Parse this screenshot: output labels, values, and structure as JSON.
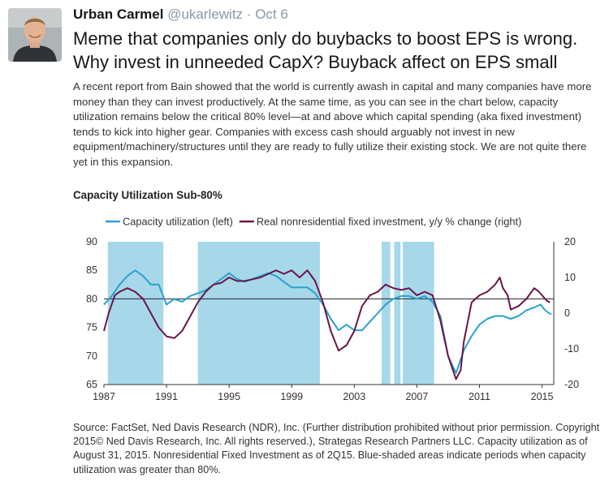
{
  "tweet": {
    "name": "Urban Carmel",
    "handle": "@ukarlewitz",
    "separator": "·",
    "time": "Oct 6",
    "text": "Meme that companies only do buybacks to boost EPS is wrong. Why invest in unneeded CapX? Buyback affect on EPS small"
  },
  "card": {
    "report_text": "A recent report from Bain showed that the world is currently awash in capital and many companies have more money than they can invest productively. At the same time, as you can see in the chart below, capacity utilization remains below the critical 80% level—at and above which capital spending (aka fixed investment) tends to kick into higher gear. Companies with excess cash should arguably not invest in new equipment/machinery/structures until they are ready to fully utilize their existing stock. We are not quite there yet in this expansion.",
    "source_text": "Source: FactSet, Ned Davis Research (NDR), Inc. (Further distribution prohibited without prior permission. Copyright 2015© Ned Davis Research, Inc. All rights reserved.), Strategas Research Partners LLC. Capacity utilization as of August 31, 2015. Nonresidential Fixed Investment as of 2Q15. Blue-shaded areas indicate periods when capacity utilization was greater than 80%."
  },
  "chart_data": {
    "type": "line",
    "title": "Capacity Utilization Sub-80%",
    "colors": {
      "capacity": "#2aa0cf",
      "investment": "#6b1546",
      "shade": "#a6d8ea",
      "ref_line": "#222222"
    },
    "x_ticks": [
      "1987",
      "1991",
      "1995",
      "1999",
      "2003",
      "2007",
      "2011",
      "2015"
    ],
    "x_range": [
      1987,
      2015.75
    ],
    "y_left": {
      "range": [
        65,
        90
      ],
      "ticks": [
        65,
        70,
        75,
        80,
        85,
        90
      ]
    },
    "y_right": {
      "range": [
        -20,
        20
      ],
      "ticks": [
        "-20",
        "-10",
        "0",
        "10",
        "20"
      ]
    },
    "reference_value_left": 80,
    "shaded_periods": [
      [
        1987.25,
        1990.8
      ],
      [
        1993.0,
        2000.8
      ],
      [
        2004.75,
        2005.3
      ],
      [
        2005.55,
        2005.95
      ],
      [
        2006.1,
        2008.1
      ]
    ],
    "series": [
      {
        "name": "Capacity utilization (left)",
        "axis": "left",
        "points": [
          [
            1987.0,
            79.0
          ],
          [
            1987.5,
            80.5
          ],
          [
            1988.0,
            82.5
          ],
          [
            1988.5,
            84.0
          ],
          [
            1989.0,
            85.0
          ],
          [
            1989.5,
            84.0
          ],
          [
            1990.0,
            82.5
          ],
          [
            1990.5,
            82.5
          ],
          [
            1991.0,
            79.0
          ],
          [
            1991.5,
            80.0
          ],
          [
            1992.0,
            79.5
          ],
          [
            1992.5,
            80.5
          ],
          [
            1993.0,
            81.0
          ],
          [
            1993.5,
            81.5
          ],
          [
            1994.0,
            82.5
          ],
          [
            1994.5,
            83.5
          ],
          [
            1995.0,
            84.5
          ],
          [
            1995.5,
            83.5
          ],
          [
            1996.0,
            83.0
          ],
          [
            1996.5,
            83.5
          ],
          [
            1997.0,
            84.0
          ],
          [
            1997.5,
            84.5
          ],
          [
            1998.0,
            84.0
          ],
          [
            1998.5,
            83.0
          ],
          [
            1999.0,
            82.0
          ],
          [
            1999.5,
            82.0
          ],
          [
            2000.0,
            82.0
          ],
          [
            2000.5,
            81.0
          ],
          [
            2001.0,
            79.0
          ],
          [
            2001.5,
            76.5
          ],
          [
            2002.0,
            74.5
          ],
          [
            2002.5,
            75.5
          ],
          [
            2003.0,
            74.5
          ],
          [
            2003.5,
            74.5
          ],
          [
            2004.0,
            76.0
          ],
          [
            2004.5,
            77.5
          ],
          [
            2005.0,
            79.0
          ],
          [
            2005.5,
            80.0
          ],
          [
            2006.0,
            80.5
          ],
          [
            2006.5,
            80.5
          ],
          [
            2007.0,
            80.0
          ],
          [
            2007.5,
            80.5
          ],
          [
            2008.0,
            79.5
          ],
          [
            2008.5,
            77.0
          ],
          [
            2009.0,
            70.0
          ],
          [
            2009.5,
            67.0
          ],
          [
            2010.0,
            71.0
          ],
          [
            2010.5,
            73.5
          ],
          [
            2011.0,
            75.5
          ],
          [
            2011.5,
            76.5
          ],
          [
            2012.0,
            77.0
          ],
          [
            2012.5,
            77.0
          ],
          [
            2013.0,
            76.5
          ],
          [
            2013.5,
            77.0
          ],
          [
            2014.0,
            78.0
          ],
          [
            2014.5,
            78.5
          ],
          [
            2014.9,
            79.0
          ],
          [
            2015.2,
            78.0
          ],
          [
            2015.45,
            77.5
          ],
          [
            2015.6,
            77.3
          ]
        ]
      },
      {
        "name": "Real nonresidential fixed investment, y/y % change (right)",
        "axis": "right",
        "points": [
          [
            1987.0,
            -5.0
          ],
          [
            1987.3,
            0.0
          ],
          [
            1987.7,
            5.0
          ],
          [
            1988.0,
            6.0
          ],
          [
            1988.5,
            7.0
          ],
          [
            1989.0,
            6.0
          ],
          [
            1989.5,
            4.0
          ],
          [
            1990.0,
            0.0
          ],
          [
            1990.5,
            -4.0
          ],
          [
            1991.0,
            -6.5
          ],
          [
            1991.5,
            -7.0
          ],
          [
            1992.0,
            -5.0
          ],
          [
            1992.5,
            -1.0
          ],
          [
            1993.0,
            3.0
          ],
          [
            1993.5,
            6.0
          ],
          [
            1994.0,
            8.0
          ],
          [
            1994.5,
            8.5
          ],
          [
            1995.0,
            10.0
          ],
          [
            1995.5,
            9.0
          ],
          [
            1996.0,
            9.0
          ],
          [
            1996.5,
            9.5
          ],
          [
            1997.0,
            10.0
          ],
          [
            1997.5,
            11.0
          ],
          [
            1998.0,
            12.0
          ],
          [
            1998.5,
            11.0
          ],
          [
            1999.0,
            12.0
          ],
          [
            1999.5,
            10.0
          ],
          [
            2000.0,
            12.0
          ],
          [
            2000.5,
            9.0
          ],
          [
            2001.0,
            3.0
          ],
          [
            2001.5,
            -5.0
          ],
          [
            2002.0,
            -10.5
          ],
          [
            2002.5,
            -9.0
          ],
          [
            2003.0,
            -5.0
          ],
          [
            2003.5,
            2.0
          ],
          [
            2004.0,
            5.0
          ],
          [
            2004.5,
            6.0
          ],
          [
            2005.0,
            8.0
          ],
          [
            2005.5,
            7.0
          ],
          [
            2006.0,
            6.5
          ],
          [
            2006.5,
            7.0
          ],
          [
            2007.0,
            5.0
          ],
          [
            2007.5,
            6.0
          ],
          [
            2008.0,
            5.0
          ],
          [
            2008.5,
            -2.0
          ],
          [
            2009.0,
            -12.0
          ],
          [
            2009.5,
            -18.5
          ],
          [
            2009.8,
            -16.0
          ],
          [
            2010.0,
            -8.0
          ],
          [
            2010.5,
            3.0
          ],
          [
            2011.0,
            5.0
          ],
          [
            2011.5,
            6.0
          ],
          [
            2012.0,
            8.0
          ],
          [
            2012.3,
            10.0
          ],
          [
            2012.5,
            7.0
          ],
          [
            2012.8,
            5.0
          ],
          [
            2013.0,
            1.0
          ],
          [
            2013.5,
            2.0
          ],
          [
            2014.0,
            4.0
          ],
          [
            2014.5,
            7.0
          ],
          [
            2014.8,
            6.0
          ],
          [
            2015.0,
            5.0
          ],
          [
            2015.3,
            3.5
          ],
          [
            2015.5,
            3.0
          ]
        ]
      }
    ]
  }
}
